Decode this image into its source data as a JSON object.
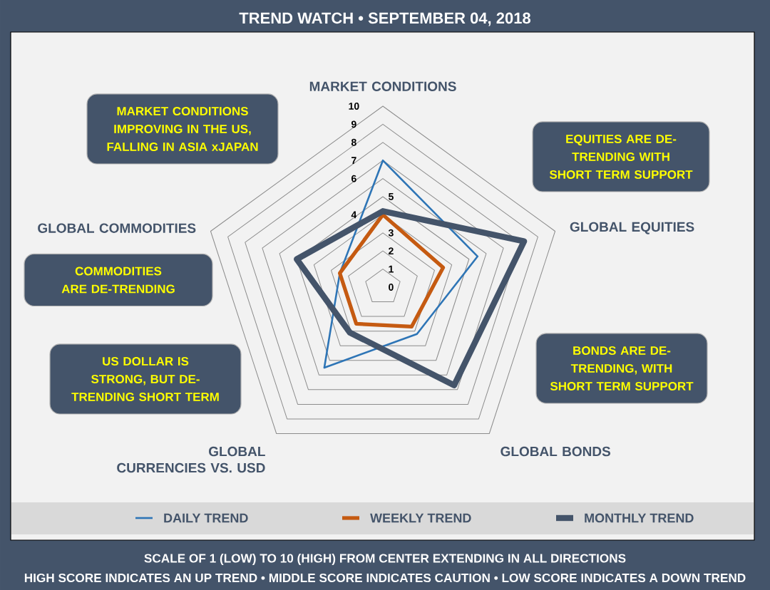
{
  "chart_data": {
    "type": "radar",
    "title": "TREND WATCH • SEPTEMBER 04, 2018",
    "categories": [
      "MARKET CONDITIONS",
      "GLOBAL EQUITIES",
      "GLOBAL BONDS",
      "GLOBAL CURRENCIES VS. USD",
      "GLOBAL COMMODITIES"
    ],
    "series": [
      {
        "name": "DAILY TREND",
        "color": "#2e75b6",
        "values": [
          7,
          5.5,
          3.2,
          5.5,
          2.5
        ]
      },
      {
        "name": "WEEKLY TREND",
        "color": "#c55a11",
        "values": [
          4,
          3.5,
          2.7,
          2.5,
          2.5
        ]
      },
      {
        "name": "MONTHLY TREND",
        "color": "#44546a",
        "values": [
          4.2,
          8.2,
          6.7,
          3.1,
          5
        ]
      }
    ],
    "ylim": [
      0,
      10
    ],
    "yticks": [
      0,
      1,
      2,
      3,
      4,
      5,
      6,
      7,
      8,
      9,
      10
    ],
    "grid": true,
    "legend": "bottom",
    "annotations": [
      "MARKET CONDITIONS IMPROVING IN THE US, FALLING IN ASIA xJAPAN",
      "EQUITIES ARE DE-TRENDING WITH SHORT TERM SUPPORT",
      "COMMODITIES ARE DE-TRENDING",
      "BONDS ARE DE-TRENDING, WITH SHORT TERM SUPPORT",
      "US DOLLAR IS STRONG, BUT DE-TRENDING SHORT TERM",
      "SCALE OF 1 (LOW) TO 10 (HIGH) FROM CENTER EXTENDING IN ALL DIRECTIONS",
      "HIGH SCORE INDICATES AN UP TREND • MIDDLE SCORE INDICATES CAUTION • LOW SCORE INDICATES A DOWN TREND"
    ]
  }
}
